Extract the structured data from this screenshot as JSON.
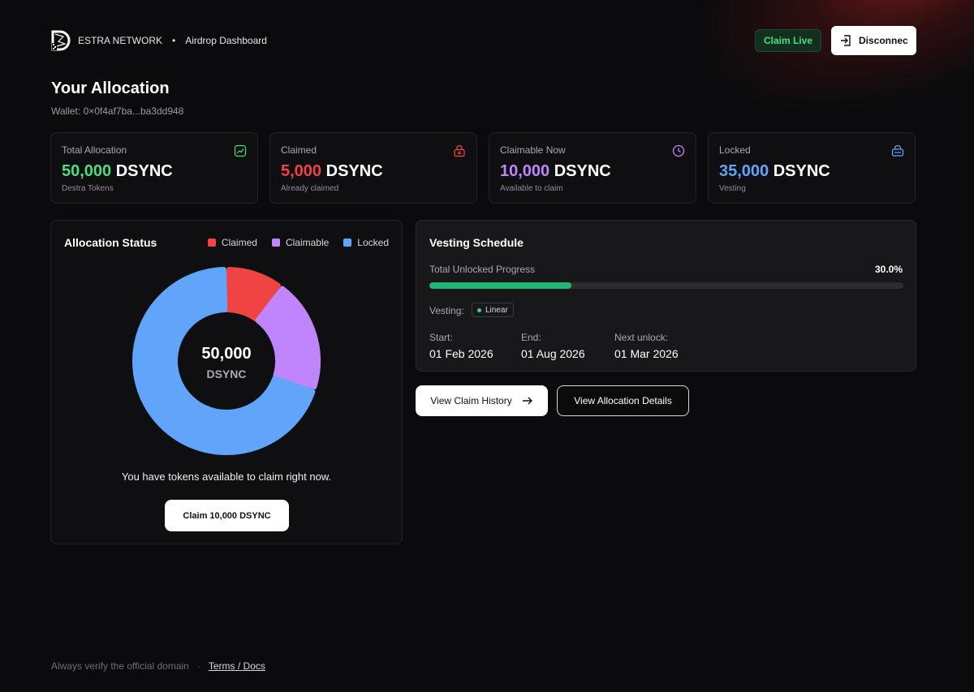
{
  "header": {
    "brand_name": "ESTRA NETWORK",
    "separator": "•",
    "section": "Airdrop Dashboard",
    "status_badge": "Claim Live",
    "disconnect_label": "Disconnec"
  },
  "page": {
    "title": "Your Allocation",
    "wallet": "Wallet: 0×0f4af7ba...ba3dd948"
  },
  "cards": [
    {
      "label": "Total Allocation",
      "amount": "50,000",
      "unit": "DSYNC",
      "sub": "Destra Tokens",
      "color": "#4ade80",
      "icon": "trend-icon"
    },
    {
      "label": "Claimed",
      "amount": "5,000",
      "unit": "DSYNC",
      "sub": "Already claimed",
      "color": "#f04444",
      "icon": "lock-icon"
    },
    {
      "label": "Claimable Now",
      "amount": "10,000",
      "unit": "DSYNC",
      "sub": "Available to claim",
      "color": "#c084fc",
      "icon": "clock-icon"
    },
    {
      "label": "Locked",
      "amount": "35,000",
      "unit": "DSYNC",
      "sub": "Vesting",
      "color": "#60a5fa",
      "icon": "vault-icon"
    }
  ],
  "allocation_status": {
    "title": "Allocation Status",
    "legend": [
      {
        "label": "Claimed",
        "color": "#f04444"
      },
      {
        "label": "Claimable",
        "color": "#c084fc"
      },
      {
        "label": "Locked",
        "color": "#60a5fa"
      }
    ],
    "center_amount": "50,000",
    "center_unit": "DSYNC",
    "message": "You have tokens available to claim right now.",
    "claim_button": "Claim 10,000 DSYNC"
  },
  "chart_data": {
    "type": "pie",
    "categories": [
      "Claimed",
      "Claimable",
      "Locked"
    ],
    "values": [
      5000,
      10000,
      35000
    ],
    "colors": [
      "#f04444",
      "#c084fc",
      "#60a5fa"
    ]
  },
  "vesting": {
    "title": "Vesting Schedule",
    "progress_label": "Total Unlocked Progress",
    "progress_text": "30.0%",
    "progress_fraction": 0.3,
    "type_label": "Vesting:",
    "type_value": "Linear",
    "start_label": "Start:",
    "start_value": "01 Feb 2026",
    "end_label": "End:",
    "end_value": "01 Aug 2026",
    "next_label": "Next unlock:",
    "next_value": "01 Mar 2026"
  },
  "actions": {
    "history": "View Claim History",
    "details": "View Allocation Details"
  },
  "footer": {
    "notice": "Always verify the official domain",
    "dot": "·",
    "link": "Terms / Docs"
  }
}
